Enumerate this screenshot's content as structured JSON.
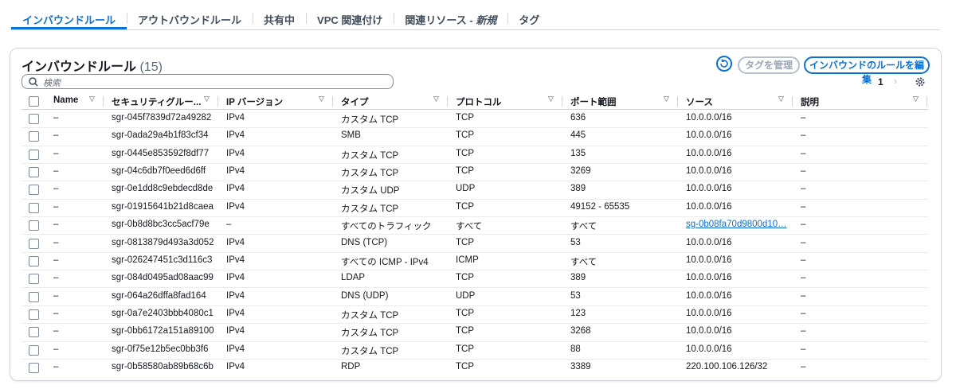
{
  "tabs": [
    {
      "label": "インバウンドルール"
    },
    {
      "label": "アウトバウンドルール"
    },
    {
      "label": "共有中"
    },
    {
      "label": "VPC 関連付け"
    },
    {
      "label": "関連リソース -",
      "badge": "新規"
    },
    {
      "label": "タグ"
    }
  ],
  "panel": {
    "title": "インバウンドルール",
    "count": "(15)",
    "buttons": [
      "タグを管理",
      "インバウンドのルールを編集"
    ],
    "search_placeholder": "検索",
    "page": "1"
  },
  "table": {
    "columns": [
      "Name",
      "セキュリティグルー...",
      "IP バージョン",
      "タイプ",
      "プロトコル",
      "ポート範囲",
      "ソース",
      "説明"
    ],
    "rows": [
      [
        "–",
        "sgr-045f7839d72a49282",
        "IPv4",
        "カスタム TCP",
        "TCP",
        "636",
        "10.0.0.0/16",
        "–"
      ],
      [
        "–",
        "sgr-0ada29a4b1f83cf34",
        "IPv4",
        "SMB",
        "TCP",
        "445",
        "10.0.0.0/16",
        "–"
      ],
      [
        "–",
        "sgr-0445e853592f8df77",
        "IPv4",
        "カスタム TCP",
        "TCP",
        "135",
        "10.0.0.0/16",
        "–"
      ],
      [
        "–",
        "sgr-04c6db7f0eed6d6ff",
        "IPv4",
        "カスタム TCP",
        "TCP",
        "3269",
        "10.0.0.0/16",
        "–"
      ],
      [
        "–",
        "sgr-0e1dd8c9ebdecd8de",
        "IPv4",
        "カスタム UDP",
        "UDP",
        "389",
        "10.0.0.0/16",
        "–"
      ],
      [
        "–",
        "sgr-01915641b21d8caea",
        "IPv4",
        "カスタム TCP",
        "TCP",
        "49152 - 65535",
        "10.0.0.0/16",
        "–"
      ],
      [
        "–",
        "sgr-0b8d8bc3cc5acf79e",
        "–",
        "すべてのトラフィック",
        "すべて",
        "すべて",
        "sg-0b08fa70d9800d10…",
        "–"
      ],
      [
        "–",
        "sgr-0813879d493a3d052",
        "IPv4",
        "DNS (TCP)",
        "TCP",
        "53",
        "10.0.0.0/16",
        "–"
      ],
      [
        "–",
        "sgr-026247451c3d116c3",
        "IPv4",
        "すべての ICMP - IPv4",
        "ICMP",
        "すべて",
        "10.0.0.0/16",
        "–"
      ],
      [
        "–",
        "sgr-084d0495ad08aac99",
        "IPv4",
        "LDAP",
        "TCP",
        "389",
        "10.0.0.0/16",
        "–"
      ],
      [
        "–",
        "sgr-064a26dffa8fad164",
        "IPv4",
        "DNS (UDP)",
        "UDP",
        "53",
        "10.0.0.0/16",
        "–"
      ],
      [
        "–",
        "sgr-0a7e2403bbb4080c1",
        "IPv4",
        "カスタム TCP",
        "TCP",
        "123",
        "10.0.0.0/16",
        "–"
      ],
      [
        "–",
        "sgr-0bb6172a151a89100",
        "IPv4",
        "カスタム TCP",
        "TCP",
        "3268",
        "10.0.0.0/16",
        "–"
      ],
      [
        "–",
        "sgr-0f75e12b5ec0bb3f6",
        "IPv4",
        "カスタム TCP",
        "TCP",
        "88",
        "10.0.0.0/16",
        "–"
      ],
      [
        "–",
        "sgr-0b58580ab89b68c6b",
        "IPv4",
        "RDP",
        "TCP",
        "3389",
        "220.100.106.126/32",
        "–"
      ]
    ]
  }
}
